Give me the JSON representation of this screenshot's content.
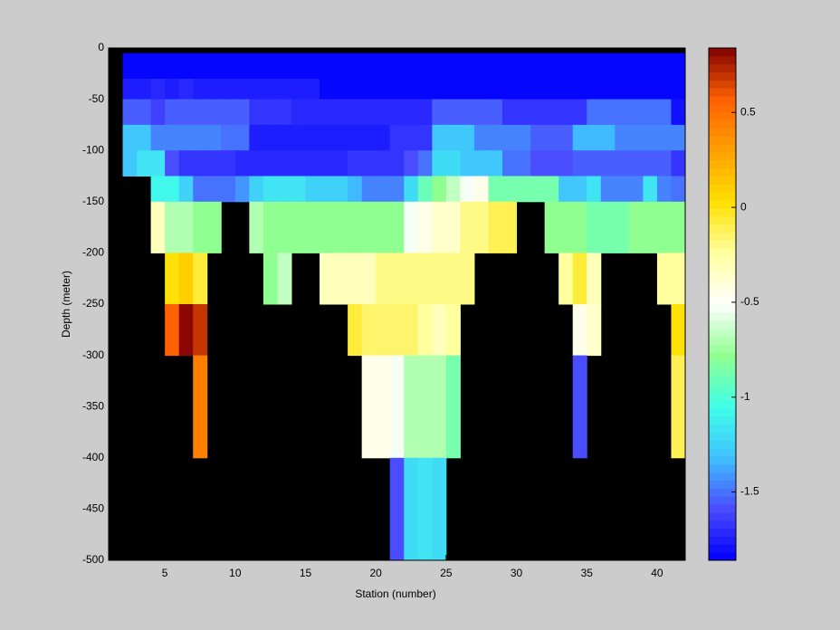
{
  "chart_data": {
    "type": "heatmap",
    "xlabel": "Station (number)",
    "ylabel": "Depth (meter)",
    "xlim": [
      1,
      42
    ],
    "ylim": [
      -500,
      0
    ],
    "xticks": [
      5,
      10,
      15,
      20,
      25,
      30,
      35,
      40
    ],
    "yticks": [
      0,
      -50,
      -100,
      -150,
      -200,
      -250,
      -300,
      -350,
      -400,
      -450,
      -500
    ],
    "x_edges": [
      2,
      3,
      4,
      5,
      6,
      7,
      8,
      9,
      10,
      11,
      12,
      13,
      14,
      15,
      16,
      17,
      18,
      19,
      20,
      21,
      22,
      23,
      24,
      25,
      26,
      27,
      28,
      29,
      30,
      31,
      32,
      33,
      34,
      35,
      36,
      37,
      38,
      39,
      40,
      41,
      42
    ],
    "y_edges": [
      -5,
      -30,
      -50,
      -75,
      -100,
      -125,
      -150,
      -200,
      -250,
      -300,
      -400,
      -500
    ],
    "values": [
      [
        -1.83,
        -1.83,
        -1.83,
        -1.83,
        -1.83,
        -1.83,
        -1.83,
        -1.83,
        -1.83,
        -1.83,
        -1.83,
        -1.83,
        -1.83,
        -1.83,
        -1.83,
        -1.83,
        -1.83,
        -1.83,
        -1.83,
        -1.83,
        -1.83,
        -1.83,
        -1.83,
        -1.83,
        -1.83,
        -1.83,
        -1.83,
        -1.83,
        -1.83,
        -1.83,
        -1.83,
        -1.83,
        -1.83,
        -1.83,
        -1.83,
        -1.83,
        -1.83,
        -1.83,
        -1.83,
        -1.83
      ],
      [
        -1.76,
        -1.76,
        -1.7,
        -1.76,
        -1.72,
        -1.76,
        -1.76,
        -1.76,
        -1.76,
        -1.76,
        -1.76,
        -1.76,
        -1.76,
        -1.76,
        -1.83,
        -1.83,
        -1.83,
        -1.83,
        -1.83,
        -1.83,
        -1.83,
        -1.83,
        -1.83,
        -1.83,
        -1.83,
        -1.83,
        -1.83,
        -1.83,
        -1.83,
        -1.83,
        -1.83,
        -1.83,
        -1.83,
        -1.83,
        -1.83,
        -1.83,
        -1.83,
        -1.83,
        -1.83,
        -1.83
      ],
      [
        -1.55,
        -1.55,
        -1.62,
        -1.55,
        -1.55,
        -1.55,
        -1.55,
        -1.55,
        -1.55,
        -1.65,
        -1.65,
        -1.65,
        -1.72,
        -1.72,
        -1.72,
        -1.72,
        -1.72,
        -1.72,
        -1.72,
        -1.72,
        -1.72,
        -1.72,
        -1.55,
        -1.55,
        -1.55,
        -1.55,
        -1.55,
        -1.65,
        -1.65,
        -1.65,
        -1.65,
        -1.65,
        -1.65,
        -1.5,
        -1.5,
        -1.5,
        -1.5,
        -1.5,
        -1.5,
        -1.8
      ],
      [
        -1.3,
        -1.3,
        -1.45,
        -1.45,
        -1.45,
        -1.45,
        -1.45,
        -1.5,
        -1.5,
        -1.75,
        -1.75,
        -1.75,
        -1.75,
        -1.75,
        -1.75,
        -1.75,
        -1.75,
        -1.75,
        -1.75,
        -1.65,
        -1.65,
        -1.65,
        -1.3,
        -1.3,
        -1.3,
        -1.45,
        -1.45,
        -1.45,
        -1.45,
        -1.55,
        -1.55,
        -1.55,
        -1.35,
        -1.35,
        -1.35,
        -1.45,
        -1.45,
        -1.45,
        -1.45,
        -1.45
      ],
      [
        -1.3,
        -1.15,
        -1.15,
        -1.6,
        -1.65,
        -1.65,
        -1.65,
        -1.65,
        -1.7,
        -1.7,
        -1.7,
        -1.7,
        -1.7,
        -1.7,
        -1.7,
        -1.7,
        -1.65,
        -1.65,
        -1.65,
        -1.65,
        -1.6,
        -1.5,
        -1.2,
        -1.2,
        -1.3,
        -1.3,
        -1.3,
        -1.5,
        -1.5,
        -1.6,
        -1.6,
        -1.6,
        -1.55,
        -1.55,
        -1.55,
        -1.55,
        -1.55,
        -1.55,
        -1.55,
        -1.65
      ],
      [
        null,
        null,
        -1.1,
        -1.1,
        -1.25,
        -1.5,
        -1.5,
        -1.5,
        -1.4,
        -1.25,
        -1.15,
        -1.15,
        -1.15,
        -1.25,
        -1.25,
        -1.25,
        -1.35,
        -1.45,
        -1.45,
        -1.45,
        -1.2,
        -0.9,
        -0.8,
        -0.65,
        -0.55,
        -0.45,
        -0.85,
        -0.85,
        -0.85,
        -0.85,
        -0.85,
        -1.3,
        -1.3,
        -1.15,
        -1.45,
        -1.45,
        -1.45,
        -1.15,
        -1.45,
        -1.5
      ],
      [
        null,
        null,
        -0.3,
        -0.7,
        -0.7,
        -0.8,
        -0.8,
        null,
        null,
        -0.7,
        -0.8,
        -0.8,
        -0.8,
        -0.8,
        -0.8,
        -0.8,
        -0.8,
        -0.8,
        -0.8,
        -0.8,
        -0.55,
        -0.45,
        -0.35,
        -0.35,
        -0.2,
        -0.2,
        -0.1,
        -0.1,
        null,
        null,
        -0.8,
        -0.8,
        -0.8,
        -0.85,
        -0.85,
        -0.85,
        -0.8,
        -0.8,
        -0.8,
        -0.8
      ],
      [
        null,
        null,
        null,
        0,
        0.1,
        -0.05,
        null,
        null,
        null,
        null,
        -0.8,
        -0.65,
        null,
        null,
        -0.3,
        -0.3,
        -0.3,
        -0.3,
        -0.2,
        -0.2,
        -0.2,
        -0.2,
        -0.2,
        -0.2,
        -0.2,
        null,
        null,
        null,
        null,
        null,
        null,
        -0.25,
        -0.05,
        -0.3,
        null,
        null,
        null,
        null,
        -0.25,
        -0.25
      ],
      [
        null,
        null,
        null,
        0.55,
        0.8,
        0.7,
        null,
        null,
        null,
        null,
        null,
        null,
        null,
        null,
        null,
        null,
        -0.05,
        -0.15,
        -0.15,
        -0.15,
        -0.15,
        -0.25,
        -0.3,
        -0.25,
        null,
        null,
        null,
        null,
        null,
        null,
        null,
        null,
        -0.45,
        -0.35,
        null,
        null,
        null,
        null,
        null,
        0
      ],
      [
        null,
        null,
        null,
        null,
        null,
        0.45,
        null,
        null,
        null,
        null,
        null,
        null,
        null,
        null,
        null,
        null,
        null,
        -0.45,
        -0.45,
        -0.55,
        -0.7,
        -0.7,
        -0.7,
        -0.85,
        null,
        null,
        null,
        null,
        null,
        null,
        null,
        null,
        -1.6,
        null,
        null,
        null,
        null,
        null,
        null,
        -0.1
      ],
      [
        null,
        null,
        null,
        null,
        null,
        null,
        null,
        null,
        null,
        null,
        null,
        null,
        null,
        null,
        null,
        null,
        null,
        null,
        null,
        -1.6,
        -1.2,
        -1.15,
        -1.2,
        null,
        null,
        null,
        null,
        null,
        null,
        null,
        null,
        null,
        null,
        null,
        null,
        null,
        null,
        null,
        null,
        null
      ]
    ],
    "clim": [
      -1.86,
      0.84
    ],
    "colorbar_ticks": [
      0.5,
      0,
      -0.5,
      -1,
      -1.5
    ],
    "colormap": [
      "#0000ff",
      "#4a4aff",
      "#40c0ff",
      "#40ffe8",
      "#90ff90",
      "#ffffff",
      "#ffffa0",
      "#ffe000",
      "#ffa000",
      "#ff6000",
      "#800000"
    ],
    "background": "#000000"
  }
}
